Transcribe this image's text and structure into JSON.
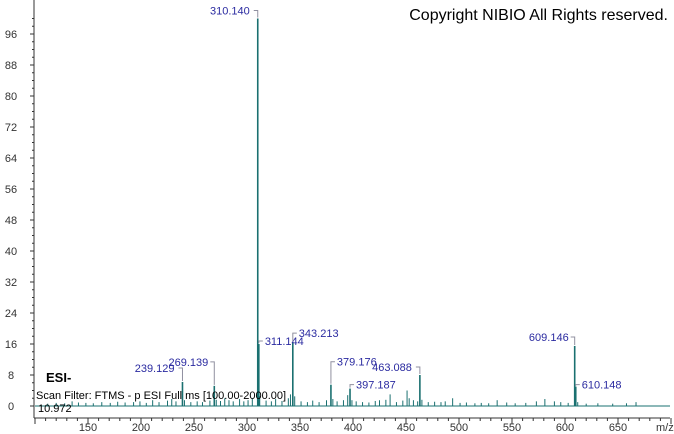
{
  "copyright": "Copyright NIBIO All Rights reserved.",
  "ionization": "ESI-",
  "scan_filter": "Scan Filter: FTMS - p ESI Full ms [100.00-2000.00]",
  "retention_time": "10.972",
  "colors": {
    "peak": "#1a7070",
    "label": "#2a2aa0",
    "leader": "#9090a0"
  },
  "chart_data": {
    "type": "bar",
    "title": "",
    "xlabel": "m/z",
    "ylabel": "",
    "xlim": [
      100,
      700
    ],
    "ylim": [
      0,
      100
    ],
    "xticks": [
      150,
      200,
      250,
      300,
      350,
      400,
      450,
      500,
      550,
      600,
      650
    ],
    "yticks": [
      0,
      8,
      16,
      24,
      32,
      40,
      48,
      56,
      64,
      72,
      80,
      88,
      96
    ],
    "grid": false,
    "labeled_peaks": [
      {
        "mz": 310.14,
        "intensity": 100,
        "label": "310.140"
      },
      {
        "mz": 311.144,
        "intensity": 16,
        "label": "311.144"
      },
      {
        "mz": 343.213,
        "intensity": 16.5,
        "label": "343.213"
      },
      {
        "mz": 239.129,
        "intensity": 6.2,
        "label": "239.129"
      },
      {
        "mz": 269.139,
        "intensity": 5.2,
        "label": "269.139"
      },
      {
        "mz": 379.176,
        "intensity": 5.5,
        "label": "379.176"
      },
      {
        "mz": 463.088,
        "intensity": 8,
        "label": "463.088"
      },
      {
        "mz": 397.187,
        "intensity": 4.5,
        "label": "397.187"
      },
      {
        "mz": 609.146,
        "intensity": 15.5,
        "label": "609.146"
      },
      {
        "mz": 610.148,
        "intensity": 5,
        "label": "610.148"
      }
    ],
    "minor_peaks": [
      [
        112,
        0.6
      ],
      [
        120,
        0.8
      ],
      [
        128,
        0.7
      ],
      [
        135,
        1.2
      ],
      [
        141,
        0.9
      ],
      [
        148,
        0.8
      ],
      [
        155,
        0.7
      ],
      [
        163,
        1.0
      ],
      [
        171,
        0.8
      ],
      [
        178,
        1.1
      ],
      [
        185,
        0.9
      ],
      [
        193,
        1.0
      ],
      [
        199,
        1.2
      ],
      [
        205,
        0.8
      ],
      [
        211,
        1.5
      ],
      [
        217,
        1.0
      ],
      [
        225,
        1.4
      ],
      [
        229,
        1.8
      ],
      [
        233,
        1.2
      ],
      [
        241,
        1.5
      ],
      [
        247,
        1.0
      ],
      [
        253,
        1.2
      ],
      [
        258,
        1.0
      ],
      [
        265,
        1.4
      ],
      [
        271,
        1.6
      ],
      [
        275,
        1.3
      ],
      [
        279,
        2.0
      ],
      [
        283,
        1.5
      ],
      [
        287,
        1.2
      ],
      [
        293,
        1.8
      ],
      [
        297,
        1.2
      ],
      [
        301,
        1.5
      ],
      [
        305,
        2.0
      ],
      [
        312,
        2.5
      ],
      [
        318,
        1.4
      ],
      [
        323,
        1.2
      ],
      [
        327,
        1.8
      ],
      [
        333,
        1.3
      ],
      [
        339,
        2.0
      ],
      [
        341,
        3.0
      ],
      [
        345,
        2.5
      ],
      [
        351,
        1.2
      ],
      [
        357,
        1.0
      ],
      [
        362,
        1.4
      ],
      [
        368,
        1.0
      ],
      [
        375,
        1.5
      ],
      [
        381,
        1.8
      ],
      [
        385,
        1.2
      ],
      [
        391,
        1.5
      ],
      [
        395,
        2.8
      ],
      [
        399,
        1.5
      ],
      [
        403,
        1.2
      ],
      [
        409,
        1.0
      ],
      [
        415,
        0.9
      ],
      [
        421,
        1.3
      ],
      [
        425,
        1.5
      ],
      [
        431,
        1.6
      ],
      [
        435,
        3.0
      ],
      [
        441,
        1.0
      ],
      [
        447,
        1.4
      ],
      [
        451,
        4.0
      ],
      [
        453,
        2.0
      ],
      [
        457,
        1.5
      ],
      [
        461,
        1.2
      ],
      [
        465,
        1.6
      ],
      [
        471,
        1.0
      ],
      [
        477,
        1.1
      ],
      [
        483,
        1.0
      ],
      [
        487,
        1.2
      ],
      [
        494,
        2.0
      ],
      [
        501,
        0.8
      ],
      [
        507,
        0.9
      ],
      [
        515,
        0.7
      ],
      [
        521,
        0.8
      ],
      [
        528,
        0.7
      ],
      [
        536,
        1.5
      ],
      [
        545,
        0.9
      ],
      [
        553,
        0.7
      ],
      [
        563,
        0.8
      ],
      [
        573,
        1.2
      ],
      [
        581,
        1.8
      ],
      [
        590,
        1.2
      ],
      [
        596,
        1.0
      ],
      [
        603,
        0.8
      ],
      [
        612,
        1.0
      ],
      [
        620,
        0.6
      ],
      [
        631,
        0.7
      ],
      [
        645,
        0.6
      ],
      [
        658,
        0.7
      ],
      [
        667,
        1.0
      ]
    ]
  }
}
